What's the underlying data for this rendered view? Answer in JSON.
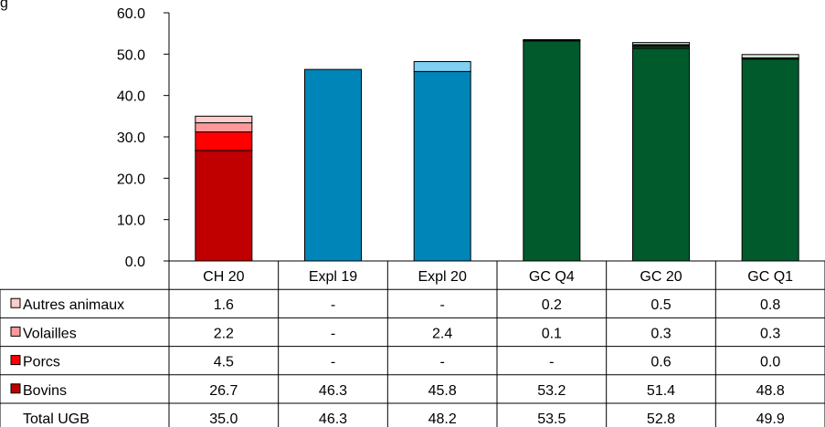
{
  "header_fragment": "g",
  "chart_data": {
    "type": "bar",
    "stacked": true,
    "categories": [
      "CH 20",
      "Expl 19",
      "Expl 20",
      "GC Q4",
      "GC 20",
      "GC Q1"
    ],
    "ylim": [
      0,
      60
    ],
    "yticks": [
      "0.0",
      "10.0",
      "20.0",
      "30.0",
      "40.0",
      "50.0",
      "60.0"
    ],
    "grid": false,
    "legend": "in data table, left",
    "series": [
      {
        "name": "Bovins",
        "values": [
          26.7,
          46.3,
          45.8,
          53.2,
          51.4,
          48.8
        ],
        "labels": [
          "26.7",
          "46.3",
          "45.8",
          "53.2",
          "51.4",
          "48.8"
        ]
      },
      {
        "name": "Porcs",
        "values": [
          4.5,
          0,
          0,
          0,
          0.6,
          0.0
        ],
        "labels": [
          "4.5",
          "-",
          "-",
          "-",
          "0.6",
          "0.0"
        ]
      },
      {
        "name": "Volailles",
        "values": [
          2.2,
          0,
          2.4,
          0.1,
          0.3,
          0.3
        ],
        "labels": [
          "2.2",
          "-",
          "2.4",
          "0.1",
          "0.3",
          "0.3"
        ]
      },
      {
        "name": "Autres animaux",
        "values": [
          1.6,
          0,
          0,
          0.2,
          0.5,
          0.8
        ],
        "labels": [
          "1.6",
          "-",
          "-",
          "0.2",
          "0.5",
          "0.8"
        ]
      }
    ],
    "total_row": {
      "name": "Total UGB",
      "labels": [
        "35.0",
        "46.3",
        "48.2",
        "53.5",
        "52.8",
        "49.9"
      ]
    },
    "table_row_order": [
      "Autres animaux",
      "Volailles",
      "Porcs",
      "Bovins"
    ],
    "colors": {
      "CH 20": [
        "#c00000",
        "#ff0000",
        "#ff9999",
        "#ffcccc"
      ],
      "Expl 19": [
        "#0085b8",
        "#0085b8",
        "#7fd0f2",
        "#bfe6f7"
      ],
      "Expl 20": [
        "#0085b8",
        "#0085b8",
        "#7fd0f2",
        "#bfe6f7"
      ],
      "GC Q4": [
        "#005a2b",
        "#1f3a1f",
        "#0b4d25",
        "#d9ead3"
      ],
      "GC 20": [
        "#005a2b",
        "#1f3a1f",
        "#0b4d25",
        "#d9ead3"
      ],
      "GC Q1": [
        "#005a2b",
        "#1f3a1f",
        "#0b4d25",
        "#d9ead3"
      ]
    },
    "legend_colors": {
      "Bovins": "#c00000",
      "Porcs": "#ff0000",
      "Volailles": "#ff9999",
      "Autres animaux": "#ffcccc"
    }
  }
}
